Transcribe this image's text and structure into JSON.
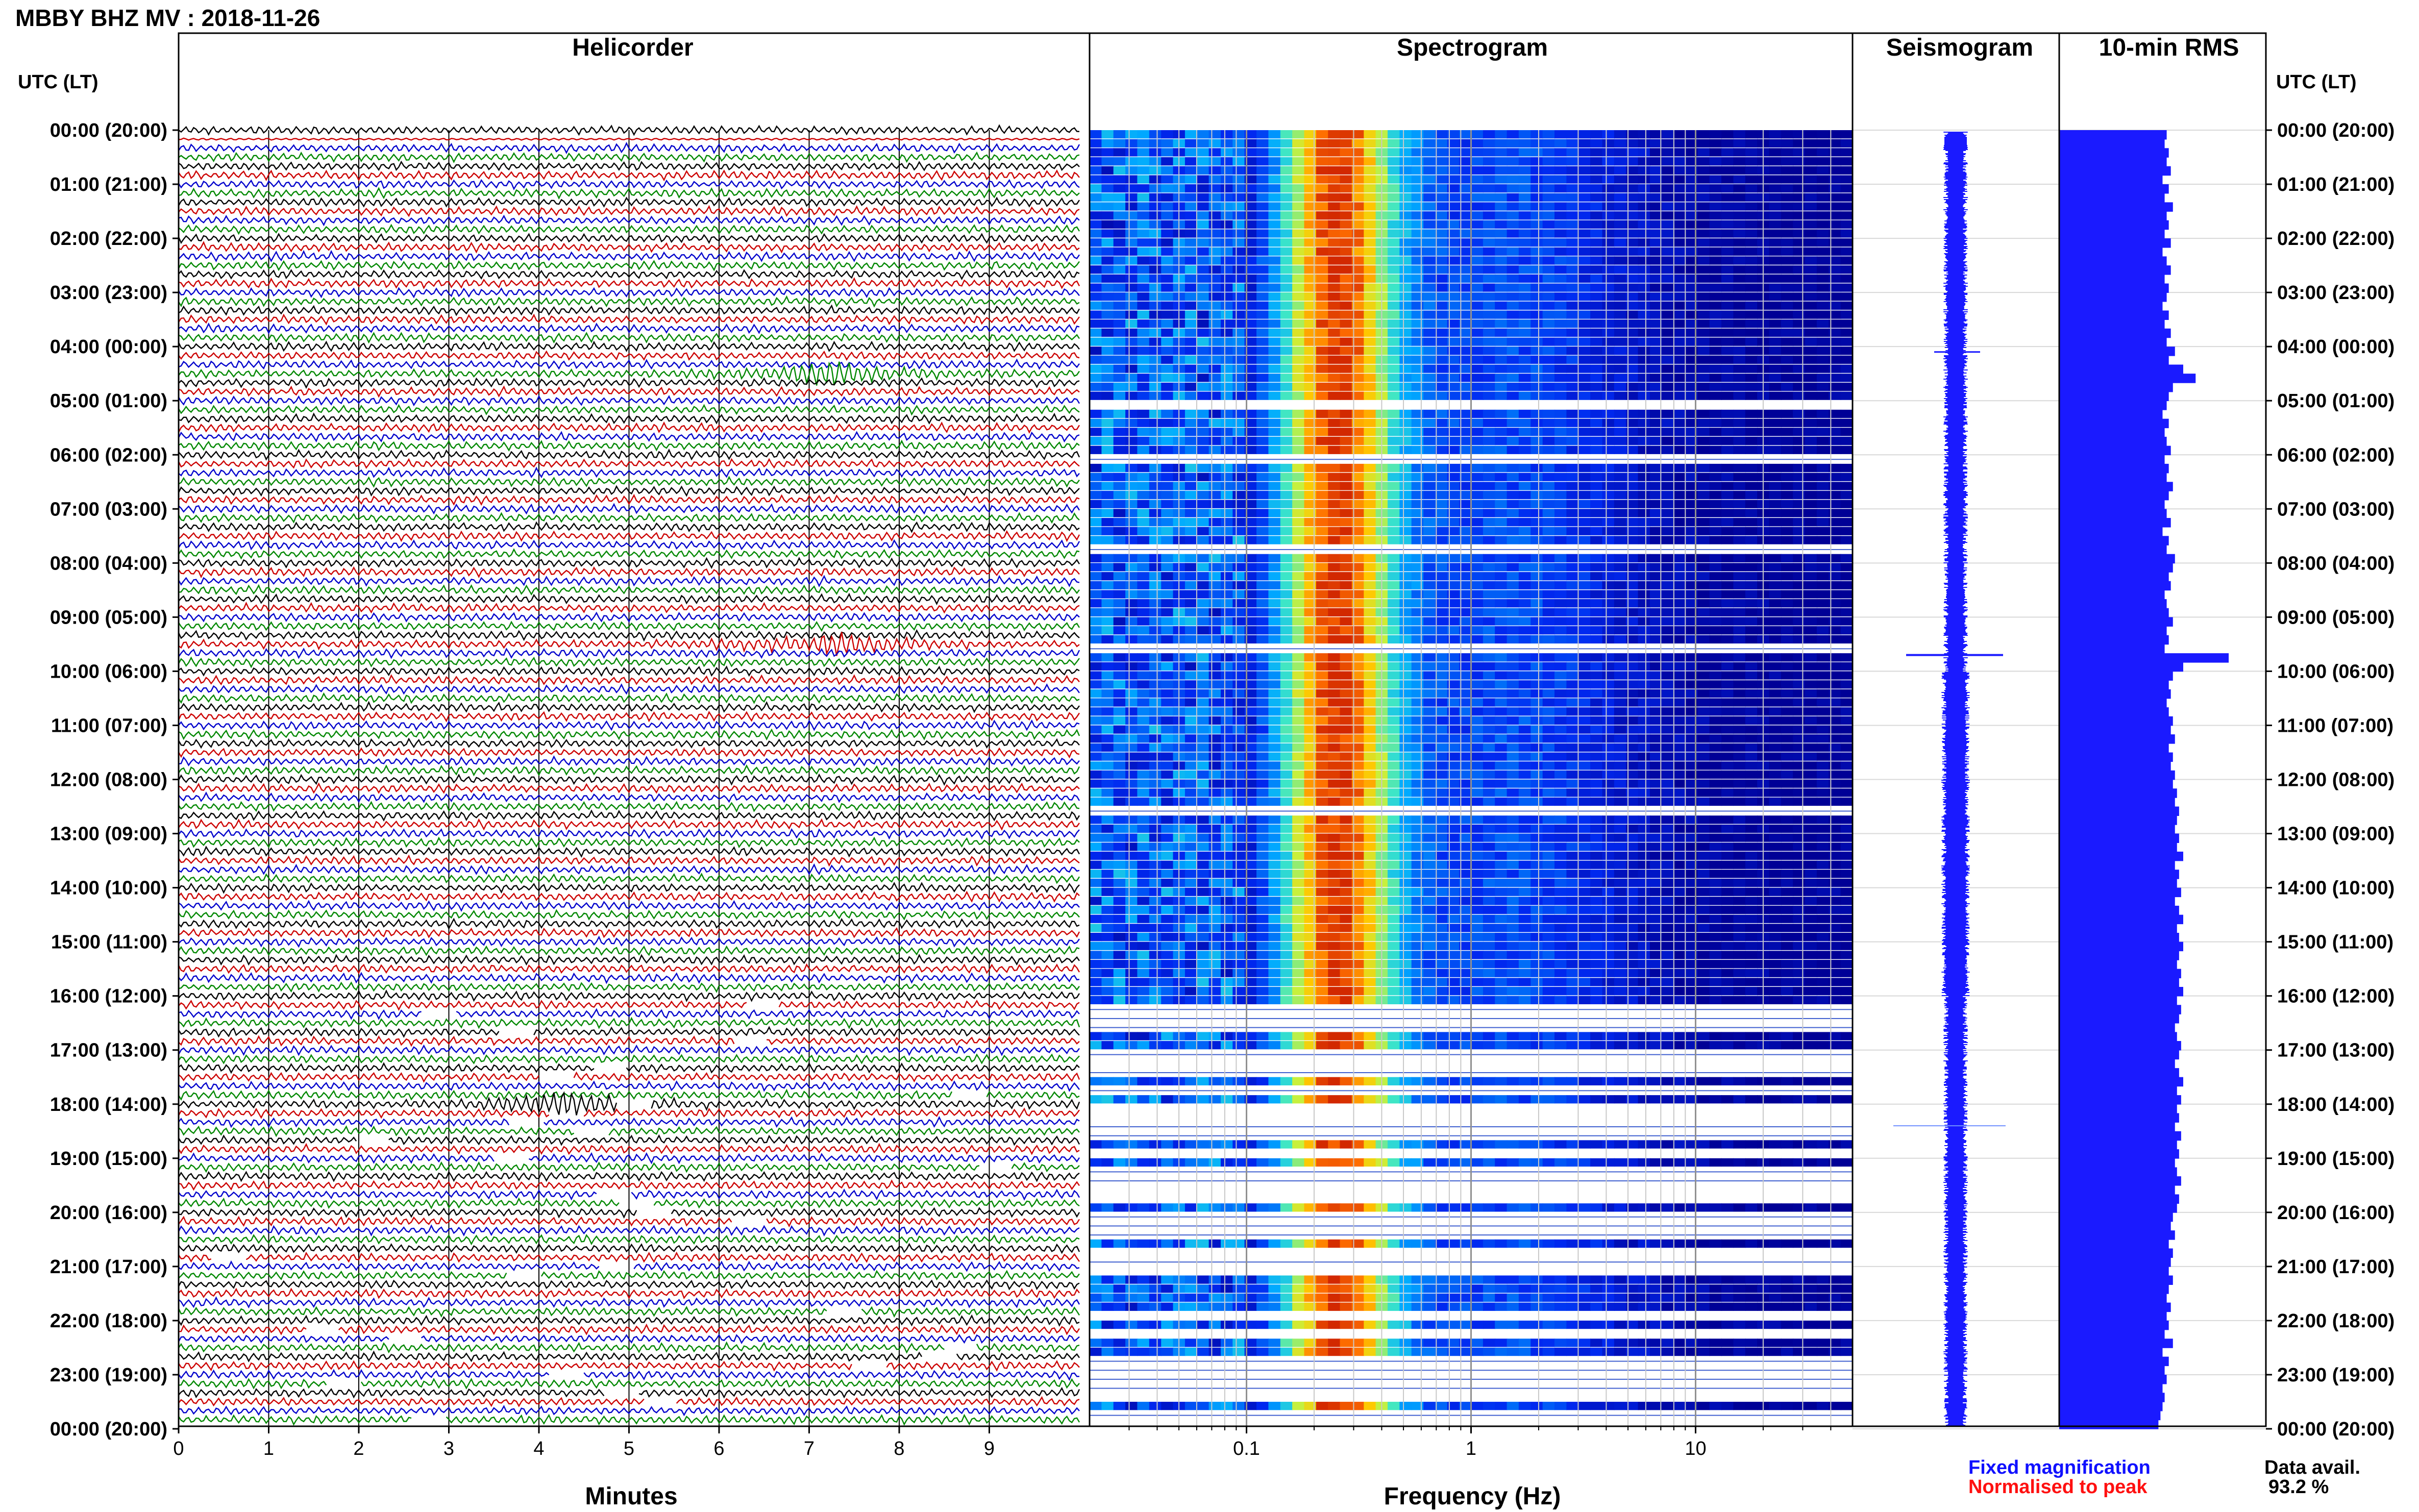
{
  "header": {
    "title": "MBBY BHZ MV : 2018-11-26",
    "utc_label_left": "UTC (LT)",
    "utc_label_right": "UTC (LT)"
  },
  "panels": {
    "helicorder": "Helicorder",
    "spectrogram": "Spectrogram",
    "seismogram": "Seismogram",
    "rms": "10-min RMS"
  },
  "axes": {
    "helicorder_xlabel": "Minutes",
    "spectrogram_xlabel": "Frequency (Hz)",
    "minute_ticks": [
      "0",
      "1",
      "2",
      "3",
      "4",
      "5",
      "6",
      "7",
      "8",
      "9"
    ],
    "freq_ticks": [
      "0.1",
      "1",
      "10"
    ]
  },
  "time_labels": [
    "00:00 (20:00)",
    "01:00 (21:00)",
    "02:00 (22:00)",
    "03:00 (23:00)",
    "04:00 (00:00)",
    "05:00 (01:00)",
    "06:00 (02:00)",
    "07:00 (03:00)",
    "08:00 (04:00)",
    "09:00 (05:00)",
    "10:00 (06:00)",
    "11:00 (07:00)",
    "12:00 (08:00)",
    "13:00 (09:00)",
    "14:00 (10:00)",
    "15:00 (11:00)",
    "16:00 (12:00)",
    "17:00 (13:00)",
    "18:00 (14:00)",
    "19:00 (15:00)",
    "20:00 (16:00)",
    "21:00 (17:00)",
    "22:00 (18:00)",
    "23:00 (19:00)",
    "00:00 (20:00)"
  ],
  "legend": {
    "fixed": "Fixed magnification",
    "normalised": "Normalised to peak",
    "avail_label": "Data avail.",
    "avail_value": "93.2 %"
  },
  "colors": {
    "trace_cycle": [
      "#000000",
      "#cc0000",
      "#0000cc",
      "#008800"
    ],
    "fixed": "#1010ff",
    "normalised": "#ff1010",
    "bar": "#1a1aff",
    "seismogram": "#1a1aff"
  },
  "chart_data": [
    {
      "type": "line",
      "name": "helicorder",
      "title": "Helicorder",
      "xlabel": "Minutes",
      "xlim": [
        0,
        10
      ],
      "rows": 144,
      "rows_with_events": [
        27,
        57,
        108
      ],
      "events_minute": [
        7.2,
        7.3,
        4.3
      ]
    },
    {
      "type": "heatmap",
      "name": "spectrogram",
      "title": "Spectrogram",
      "xlabel": "Frequency (Hz)",
      "xscale": "log",
      "xlim": [
        0.02,
        50
      ],
      "peak_frequency_hz": 0.25,
      "rows": 144
    },
    {
      "type": "bar",
      "name": "seismogram",
      "title": "Seismogram",
      "rows": 144
    },
    {
      "type": "bar",
      "name": "rms",
      "title": "10-min RMS",
      "orientation": "horizontal",
      "values": [
        0.52,
        0.51,
        0.53,
        0.52,
        0.54,
        0.5,
        0.53,
        0.51,
        0.55,
        0.52,
        0.53,
        0.51,
        0.54,
        0.5,
        0.52,
        0.54,
        0.51,
        0.53,
        0.52,
        0.5,
        0.53,
        0.51,
        0.54,
        0.52,
        0.56,
        0.53,
        0.6,
        0.66,
        0.55,
        0.53,
        0.52,
        0.5,
        0.53,
        0.51,
        0.52,
        0.54,
        0.51,
        0.53,
        0.52,
        0.55,
        0.53,
        0.51,
        0.52,
        0.54,
        0.5,
        0.53,
        0.52,
        0.56,
        0.55,
        0.53,
        0.54,
        0.51,
        0.52,
        0.53,
        0.55,
        0.52,
        0.53,
        0.51,
        0.82,
        0.6,
        0.55,
        0.53,
        0.54,
        0.52,
        0.53,
        0.55,
        0.54,
        0.56,
        0.53,
        0.55,
        0.54,
        0.56,
        0.55,
        0.57,
        0.56,
        0.58,
        0.57,
        0.56,
        0.58,
        0.57,
        0.6,
        0.56,
        0.58,
        0.57,
        0.59,
        0.56,
        0.58,
        0.6,
        0.57,
        0.58,
        0.6,
        0.58,
        0.57,
        0.59,
        0.58,
        0.6,
        0.57,
        0.59,
        0.58,
        0.56,
        0.57,
        0.59,
        0.58,
        0.56,
        0.58,
        0.6,
        0.57,
        0.59,
        0.57,
        0.58,
        0.56,
        0.59,
        0.57,
        0.58,
        0.56,
        0.57,
        0.59,
        0.56,
        0.58,
        0.57,
        0.55,
        0.54,
        0.56,
        0.53,
        0.55,
        0.54,
        0.53,
        0.55,
        0.53,
        0.52,
        0.54,
        0.52,
        0.53,
        0.51,
        0.55,
        0.5,
        0.53,
        0.51,
        0.52,
        0.5,
        0.51,
        0.5,
        0.49,
        0.48
      ]
    }
  ]
}
